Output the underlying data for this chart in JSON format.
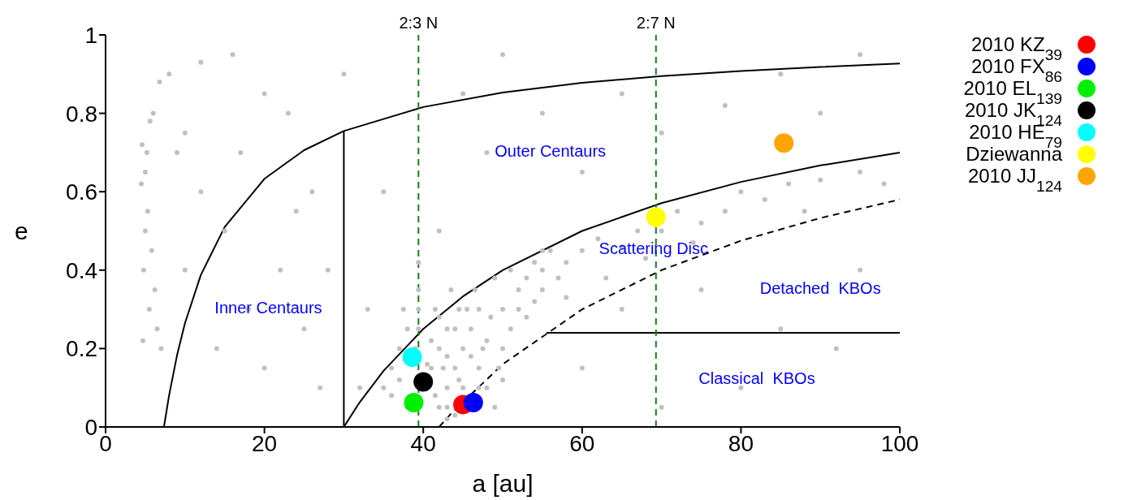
{
  "chart_data": {
    "type": "scatter",
    "xlabel": "a [au]",
    "ylabel": "e",
    "xlim": [
      0,
      100
    ],
    "ylim": [
      0,
      1
    ],
    "xticks": [
      0,
      20,
      40,
      60,
      80,
      100
    ],
    "yticks": [
      0,
      0.2,
      0.4,
      0.6,
      0.8,
      1
    ],
    "grid": false,
    "legend": "top right",
    "marker": "circle",
    "annotations": [
      "Inner Centaurs",
      "Outer Centaurs",
      "Scattering Disc",
      "Detached  KBOs",
      "Classical  KBOs",
      {
        "text": "2:3 N",
        "x": 39.4,
        "y": 1
      },
      {
        "text": "2:7 N",
        "x": 69.3,
        "y": 1
      }
    ],
    "ref_lines": [
      {
        "axis": "x",
        "value": 39.4,
        "color": "#1c7c1c",
        "line_style": "dashed"
      },
      {
        "axis": "x",
        "value": 69.3,
        "color": "#1c7c1c",
        "line_style": "dashed"
      }
    ],
    "series": [
      {
        "color": "#c0c0c0",
        "x": [
          36,
          37,
          38,
          39.4,
          40.5,
          41.5,
          42.5,
          43.5,
          44,
          44.5,
          45.5,
          46,
          46.5,
          47.5,
          48.5,
          49,
          49.5,
          51,
          51,
          52,
          53,
          54,
          55,
          56,
          57,
          58,
          41,
          42,
          43,
          44.5,
          47,
          50,
          39.4,
          37.5,
          4.5,
          5,
          5.2,
          4.8,
          5.5,
          6,
          5.3,
          6.5,
          4.6,
          5.8,
          6.2,
          5,
          7,
          8,
          10,
          12,
          4.7,
          5.6,
          6.8,
          9,
          10,
          15,
          18,
          20,
          22,
          25,
          27,
          14,
          24,
          17,
          20,
          26,
          28,
          12,
          16,
          23,
          30,
          35,
          42,
          48,
          50,
          55,
          60,
          65,
          70,
          78,
          85,
          90,
          95,
          45,
          33,
          32,
          39,
          39.4,
          39.4,
          41.5,
          41,
          42,
          42,
          43,
          43,
          44,
          44,
          45,
          45,
          46,
          47,
          47,
          48,
          48,
          50,
          50,
          52,
          53,
          55,
          55,
          54,
          36,
          35,
          37,
          38,
          43,
          43,
          49,
          58,
          60,
          62,
          65,
          67,
          70,
          72,
          75,
          78,
          80,
          83,
          86,
          90,
          95,
          98,
          63,
          68,
          74,
          88,
          65,
          75,
          85,
          95,
          60,
          80,
          92,
          70
        ],
        "values": [
          0.15,
          0.2,
          0.25,
          0.35,
          0.16,
          0.3,
          0.15,
          0.35,
          0.25,
          0.3,
          0.3,
          0.18,
          0.35,
          0.2,
          0.28,
          0.38,
          0.15,
          0.25,
          0.4,
          0.3,
          0.38,
          0.42,
          0.35,
          0.45,
          0.38,
          0.33,
          0.22,
          0.28,
          0.18,
          0.12,
          0.1,
          0.12,
          0.42,
          0.3,
          0.62,
          0.5,
          0.7,
          0.4,
          0.3,
          0.8,
          0.55,
          0.25,
          0.72,
          0.45,
          0.35,
          0.65,
          0.2,
          0.9,
          0.75,
          0.6,
          0.22,
          0.78,
          0.88,
          0.7,
          0.4,
          0.5,
          0.3,
          0.15,
          0.4,
          0.25,
          0.1,
          0.2,
          0.55,
          0.7,
          0.85,
          0.6,
          0.4,
          0.93,
          0.95,
          0.8,
          0.9,
          0.6,
          0.5,
          0.7,
          0.95,
          0.8,
          0.65,
          0.85,
          0.75,
          0.82,
          0.9,
          0.8,
          0.95,
          0.85,
          0.3,
          0.1,
          0.2,
          0.3,
          0.25,
          0.08,
          0.15,
          0.05,
          0.2,
          0.1,
          0.25,
          0.03,
          0.15,
          0.2,
          0.1,
          0.25,
          0.15,
          0.3,
          0.1,
          0.22,
          0.3,
          0.2,
          0.35,
          0.28,
          0.45,
          0.4,
          0.32,
          0.08,
          0.1,
          0.12,
          0.05,
          0.02,
          0.05,
          0.05,
          0.42,
          0.45,
          0.48,
          0.46,
          0.5,
          0.5,
          0.55,
          0.52,
          0.55,
          0.6,
          0.58,
          0.62,
          0.63,
          0.65,
          0.62,
          0.38,
          0.43,
          0.47,
          0.55,
          0.3,
          0.35,
          0.25,
          0.4,
          0.15,
          0.1,
          0.2,
          0.05
        ]
      },
      {
        "type": "line",
        "marker": "none",
        "color": "#000000",
        "x": [
          7.35,
          8,
          9,
          10,
          12,
          15,
          20,
          25,
          30,
          40,
          50,
          60,
          70,
          80,
          90,
          100
        ],
        "values": [
          0,
          0.081,
          0.183,
          0.265,
          0.388,
          0.51,
          0.633,
          0.706,
          0.755,
          0.816,
          0.853,
          0.878,
          0.895,
          0.908,
          0.918,
          0.927
        ]
      },
      {
        "type": "line",
        "marker": "none",
        "color": "#000000",
        "x": [
          30,
          32,
          35,
          40,
          45,
          50,
          60,
          70,
          80,
          90,
          100
        ],
        "values": [
          0,
          0.063,
          0.143,
          0.25,
          0.333,
          0.4,
          0.5,
          0.571,
          0.625,
          0.667,
          0.7
        ]
      },
      {
        "type": "line",
        "marker": "none",
        "color": "#000000",
        "line_style": "dashed",
        "x": [
          42,
          43.5,
          50,
          60,
          70,
          80,
          90,
          100
        ],
        "values": [
          0,
          0.034,
          0.16,
          0.3,
          0.4,
          0.475,
          0.533,
          0.58
        ]
      },
      {
        "type": "line",
        "marker": "none",
        "color": "#000000",
        "x": [
          30,
          30
        ],
        "values": [
          0,
          0.755
        ]
      },
      {
        "type": "line",
        "marker": "none",
        "color": "#000000",
        "x": [
          55.5,
          100
        ],
        "values": [
          0.24,
          0.24
        ]
      },
      {
        "type": "scatter",
        "name": "2010 KZ$_{39}$",
        "color": "#ff0000",
        "x": [
          45.0
        ],
        "values": [
          0.057
        ]
      },
      {
        "type": "scatter",
        "name": "2010 FX$_{86}$",
        "color": "#0000ff",
        "x": [
          46.3
        ],
        "values": [
          0.062
        ]
      },
      {
        "type": "scatter",
        "name": "2010 EL$_{139}$",
        "color": "#00ee00",
        "x": [
          38.8
        ],
        "values": [
          0.062
        ]
      },
      {
        "type": "scatter",
        "name": "2010 JK$_{124}$",
        "color": "#000000",
        "x": [
          40.0
        ],
        "values": [
          0.115
        ]
      },
      {
        "type": "scatter",
        "name": "2010 HE$_{79}$",
        "color": "#00ffff",
        "x": [
          38.6
        ],
        "values": [
          0.178
        ]
      },
      {
        "type": "scatter",
        "name": "Dziewanna",
        "color": "#ffff00",
        "x": [
          69.3
        ],
        "values": [
          0.535
        ]
      },
      {
        "type": "scatter",
        "name": "2010 JJ$_{124}$",
        "color": "#ffa500",
        "x": [
          85.4
        ],
        "values": [
          0.724
        ]
      }
    ]
  }
}
